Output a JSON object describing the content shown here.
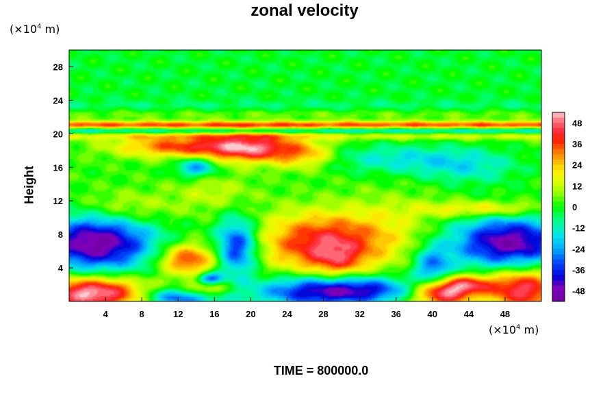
{
  "chart_data": {
    "type": "heatmap",
    "title": "zonal velocity",
    "ylabel": "Height",
    "xlabel": "",
    "x_unit": "(×10",
    "y_unit": "(×10",
    "unit_exp": "4",
    "unit_tail": " m)",
    "footer": "TIME = 800000.0",
    "xlim": [
      0,
      52
    ],
    "ylim": [
      0,
      30
    ],
    "xticks": [
      "4",
      "8",
      "12",
      "16",
      "20",
      "24",
      "28",
      "32",
      "36",
      "40",
      "44",
      "48"
    ],
    "xtick_values": [
      4,
      8,
      12,
      16,
      20,
      24,
      28,
      32,
      36,
      40,
      44,
      48
    ],
    "yticks": [
      "4",
      "8",
      "12",
      "16",
      "20",
      "24",
      "28"
    ],
    "ytick_values": [
      4,
      8,
      12,
      16,
      20,
      24,
      28
    ],
    "colorbar": {
      "range": [
        -54,
        54
      ],
      "labels": [
        "48",
        "36",
        "24",
        "12",
        "0",
        "-12",
        "-24",
        "-36",
        "-48"
      ],
      "label_values": [
        48,
        36,
        24,
        12,
        0,
        -12,
        -24,
        -36,
        -48
      ]
    },
    "features": [
      {
        "x": 20,
        "y": 18.3,
        "sx": 3.5,
        "sy": 1.2,
        "v": 42
      },
      {
        "x": 12,
        "y": 18.5,
        "sx": 5,
        "sy": 0.9,
        "v": 32
      },
      {
        "x": 26,
        "y": 17.5,
        "sx": 2.5,
        "sy": 1.2,
        "v": 22
      },
      {
        "x": 28,
        "y": 7,
        "sx": 5,
        "sy": 2.5,
        "v": 40
      },
      {
        "x": 29.5,
        "y": 4.8,
        "sx": 2,
        "sy": 1.5,
        "v": 16
      },
      {
        "x": 13,
        "y": 5,
        "sx": 2.2,
        "sy": 1.3,
        "v": 36
      },
      {
        "x": 2.5,
        "y": 1,
        "sx": 4,
        "sy": 1.4,
        "v": 54
      },
      {
        "x": 15,
        "y": 1.2,
        "sx": 2,
        "sy": 0.8,
        "v": 30
      },
      {
        "x": 41,
        "y": 1,
        "sx": 2.2,
        "sy": 1.2,
        "v": 48
      },
      {
        "x": 50,
        "y": 1.5,
        "sx": 3,
        "sy": 1.8,
        "v": 45
      },
      {
        "x": 3,
        "y": 7,
        "sx": 4.5,
        "sy": 2.4,
        "v": -54
      },
      {
        "x": 48.5,
        "y": 7,
        "sx": 4.5,
        "sy": 2.2,
        "v": -52
      },
      {
        "x": 18.5,
        "y": 6.5,
        "sx": 1.6,
        "sy": 2.4,
        "v": -42
      },
      {
        "x": 28,
        "y": 1.2,
        "sx": 5,
        "sy": 1.3,
        "v": -48
      },
      {
        "x": 13,
        "y": 0.5,
        "sx": 3,
        "sy": 0.8,
        "v": -42
      },
      {
        "x": 40,
        "y": 4,
        "sx": 1.5,
        "sy": 1.8,
        "v": -30
      },
      {
        "x": 34,
        "y": 1.5,
        "sx": 3,
        "sy": 1,
        "v": -18
      },
      {
        "x": 15.5,
        "y": 2.7,
        "sx": 1,
        "sy": 0.5,
        "v": -36
      },
      {
        "x": 14,
        "y": 16,
        "sx": 1.5,
        "sy": 0.8,
        "v": -28
      },
      {
        "x": 36,
        "y": 17,
        "sx": 6,
        "sy": 1.2,
        "v": -16
      },
      {
        "x": 44,
        "y": 16,
        "sx": 4,
        "sy": 1.5,
        "v": -14
      },
      {
        "x": 6,
        "y": 11,
        "sx": 4,
        "sy": 1.5,
        "v": 14
      },
      {
        "x": 46,
        "y": 11,
        "sx": 5,
        "sy": 0.7,
        "v": 22
      },
      {
        "x": 36,
        "y": 9,
        "sx": 4,
        "sy": 3,
        "v": 8
      },
      {
        "x": 16,
        "y": 13,
        "sx": 3,
        "sy": 1.5,
        "v": 10
      },
      {
        "x": 44,
        "y": 2,
        "sx": 2,
        "sy": 0.8,
        "v": 30
      }
    ],
    "bands": [
      {
        "y": 21.0,
        "sy": 0.35,
        "v": 34
      },
      {
        "y": 20.4,
        "sy": 0.3,
        "v": -24
      },
      {
        "y": 19.8,
        "sy": 0.35,
        "v": 14
      },
      {
        "y": 22.4,
        "sy": 0.6,
        "v": 8
      },
      {
        "y": 23.2,
        "sy": 0.5,
        "v": -6
      }
    ],
    "background": 2,
    "upper_background": -2
  }
}
